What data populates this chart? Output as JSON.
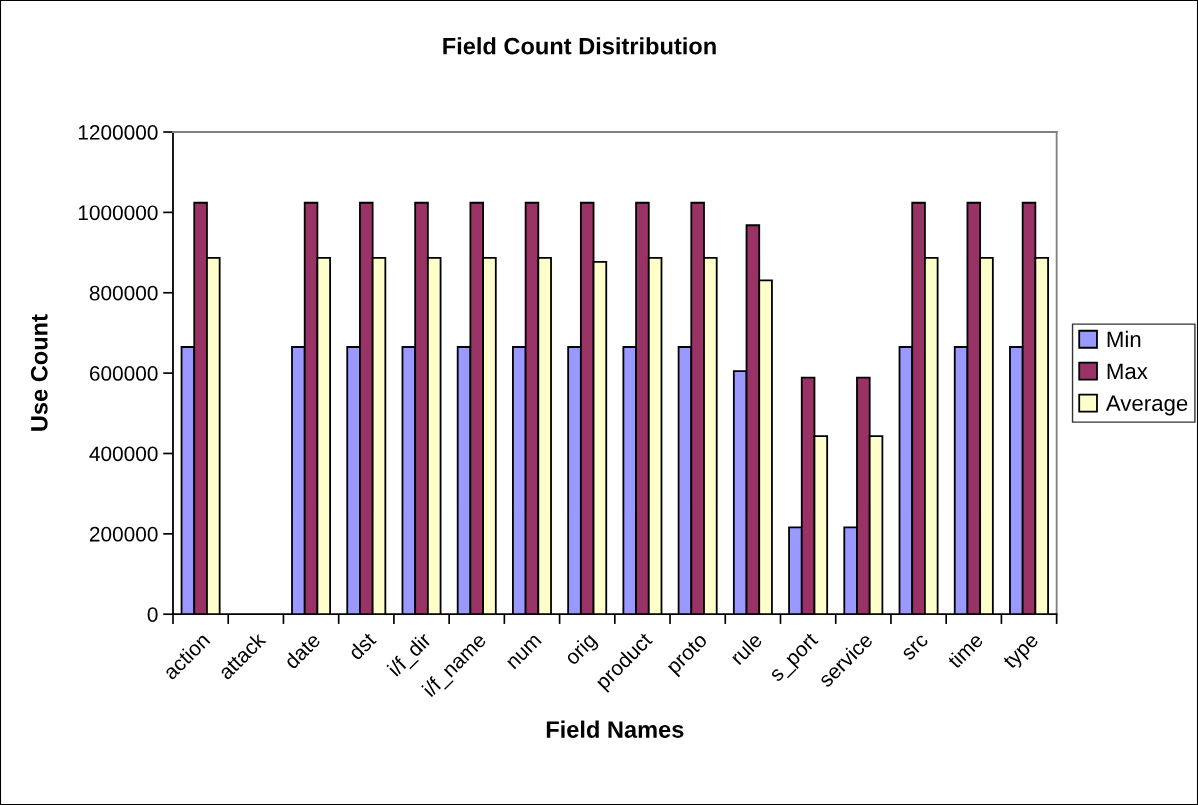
{
  "chart_data": {
    "type": "bar",
    "title": "Field Count Disitribution",
    "xlabel": "Field Names",
    "ylabel": "Use Count",
    "categories": [
      "action",
      "attack",
      "date",
      "dst",
      "i/f_dir",
      "i/f_name",
      "num",
      "orig",
      "product",
      "proto",
      "rule",
      "s_port",
      "service",
      "src",
      "time",
      "type"
    ],
    "series": [
      {
        "name": "Min",
        "color": "#9999ff",
        "values": [
          665000,
          null,
          665000,
          665000,
          665000,
          665000,
          665000,
          665000,
          665000,
          665000,
          605000,
          216000,
          216000,
          665000,
          665000,
          665000
        ]
      },
      {
        "name": "Max",
        "color": "#993366",
        "values": [
          1024000,
          null,
          1024000,
          1024000,
          1024000,
          1024000,
          1024000,
          1024000,
          1024000,
          1024000,
          968000,
          589000,
          589000,
          1024000,
          1024000,
          1024000
        ]
      },
      {
        "name": "Average",
        "color": "#ffffcc",
        "values": [
          887000,
          null,
          887000,
          887000,
          887000,
          887000,
          887000,
          877000,
          887000,
          887000,
          831000,
          443000,
          443000,
          887000,
          887000,
          887000
        ]
      }
    ],
    "ylim": [
      0,
      1200000
    ],
    "yticks": [
      0,
      200000,
      400000,
      600000,
      800000,
      1000000,
      1200000
    ],
    "legend": "right",
    "grid": false
  }
}
